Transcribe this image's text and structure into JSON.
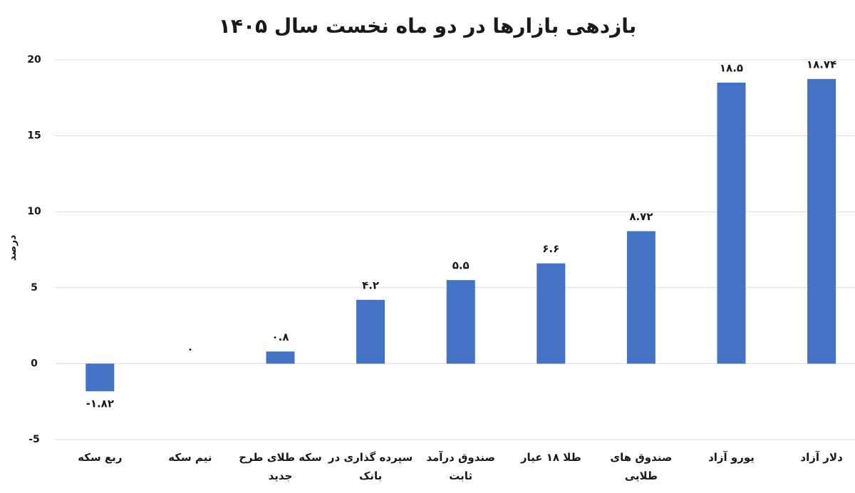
{
  "chart_data": {
    "type": "bar",
    "title": "بازدهی بازارها در دو ماه نخست سال ۱۴۰۵",
    "y_label": "درصد",
    "categories": [
      "ربع سکه",
      "نیم سکه",
      "سکه طلای طرح جدید",
      "سپرده گذاری در بانک",
      "صندوق درآمد ثابت",
      "طلا ۱۸ عیار",
      "صندوق های طلایی",
      "یورو آزاد",
      "دلار آزاد"
    ],
    "values": [
      -1.82,
      0,
      0.8,
      4.2,
      5.5,
      6.6,
      8.72,
      18.5,
      18.74
    ],
    "value_labels": [
      "-۱.۸۲",
      "۰",
      "۰.۸",
      "۴.۲",
      "۵.۵",
      "۶.۶",
      "۸.۷۲",
      "۱۸.۵",
      "۱۸.۷۴"
    ],
    "color": "#4472c4",
    "ylim": [
      -5,
      20
    ],
    "yticks": [
      -5,
      0,
      5,
      10,
      15,
      20
    ],
    "grid": true
  }
}
